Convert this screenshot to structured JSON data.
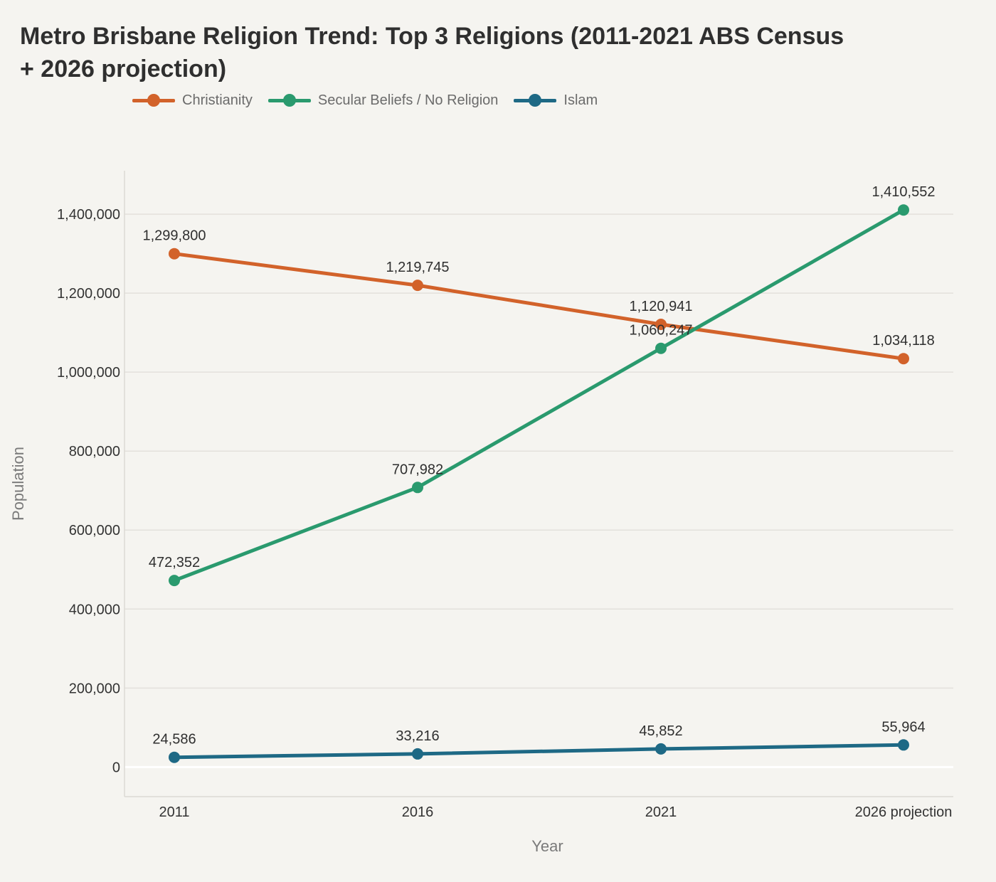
{
  "chart_data": {
    "type": "line",
    "title": "Metro Brisbane Religion Trend: Top 3 Religions (2011-2021 ABS Census + 2026 projection)",
    "xlabel": "Year",
    "ylabel": "Population",
    "categories": [
      "2011",
      "2016",
      "2021",
      "2026 projection"
    ],
    "ylim": [
      -75000,
      1510000
    ],
    "yticks": [
      0,
      200000,
      400000,
      600000,
      800000,
      1000000,
      1200000,
      1400000
    ],
    "ytick_labels": [
      "0",
      "200,000",
      "400,000",
      "600,000",
      "800,000",
      "1,000,000",
      "1,200,000",
      "1,400,000"
    ],
    "grid": true,
    "legend_position": "top-left",
    "series": [
      {
        "name": "Christianity",
        "color": "#d2622a",
        "values": [
          1299800,
          1219745,
          1120941,
          1034118
        ],
        "labels": [
          "1,299,800",
          "1,219,745",
          "1,120,941",
          "1,034,118"
        ]
      },
      {
        "name": "Secular Beliefs / No Religion",
        "color": "#2a9a6e",
        "values": [
          472352,
          707982,
          1060247,
          1410552
        ],
        "labels": [
          "472,352",
          "707,982",
          "1,060,247",
          "1,410,552"
        ]
      },
      {
        "name": "Islam",
        "color": "#1e6985",
        "values": [
          24586,
          33216,
          45852,
          55964
        ],
        "labels": [
          "24,586",
          "33,216",
          "45,852",
          "55,964"
        ]
      }
    ]
  }
}
